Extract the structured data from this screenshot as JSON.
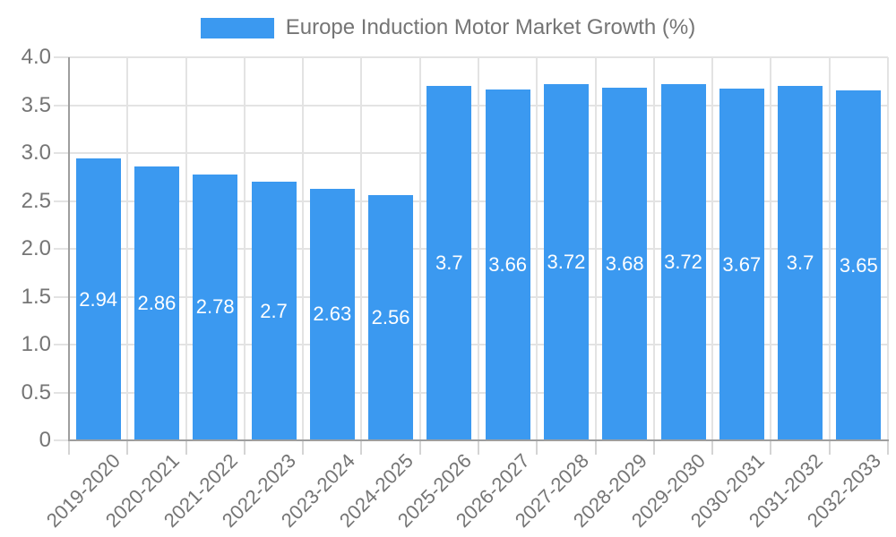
{
  "chart_data": {
    "type": "bar",
    "title": "Europe Induction Motor Market Growth (%)",
    "categories": [
      "2019-2020",
      "2020-2021",
      "2021-2022",
      "2022-2023",
      "2023-2024",
      "2024-2025",
      "2025-2026",
      "2026-2027",
      "2027-2028",
      "2028-2029",
      "2029-2030",
      "2030-2031",
      "2031-2032",
      "2032-2033"
    ],
    "values": [
      2.94,
      2.86,
      2.78,
      2.7,
      2.63,
      2.56,
      3.7,
      3.66,
      3.72,
      3.68,
      3.72,
      3.67,
      3.7,
      3.65
    ],
    "value_labels": [
      "2.94",
      "2.86",
      "2.78",
      "2.7",
      "2.63",
      "2.56",
      "3.7",
      "3.66",
      "3.72",
      "3.68",
      "3.72",
      "3.67",
      "3.7",
      "3.65"
    ],
    "xlabel": "",
    "ylabel": "",
    "ylim": [
      0,
      4
    ],
    "ytick_values": [
      0,
      0.5,
      1,
      1.5,
      2,
      2.5,
      3,
      3.5,
      4
    ],
    "ytick_labels": [
      "0",
      "0.5",
      "1.0",
      "1.5",
      "2.0",
      "2.5",
      "3.0",
      "3.5",
      "4.0"
    ],
    "grid": true,
    "legend_position": "top",
    "bar_color": "#3B99F0",
    "value_label_color": "#FFFFFF"
  },
  "colors": {
    "bar": "#3B99F0",
    "axis_text": "#757575",
    "grid_line": "#E3E3E3",
    "tick_line": "#D4D4D4",
    "axis_line": "#9E9E9E",
    "background": "#FFFFFF",
    "value_label": "#FFFFFF"
  }
}
